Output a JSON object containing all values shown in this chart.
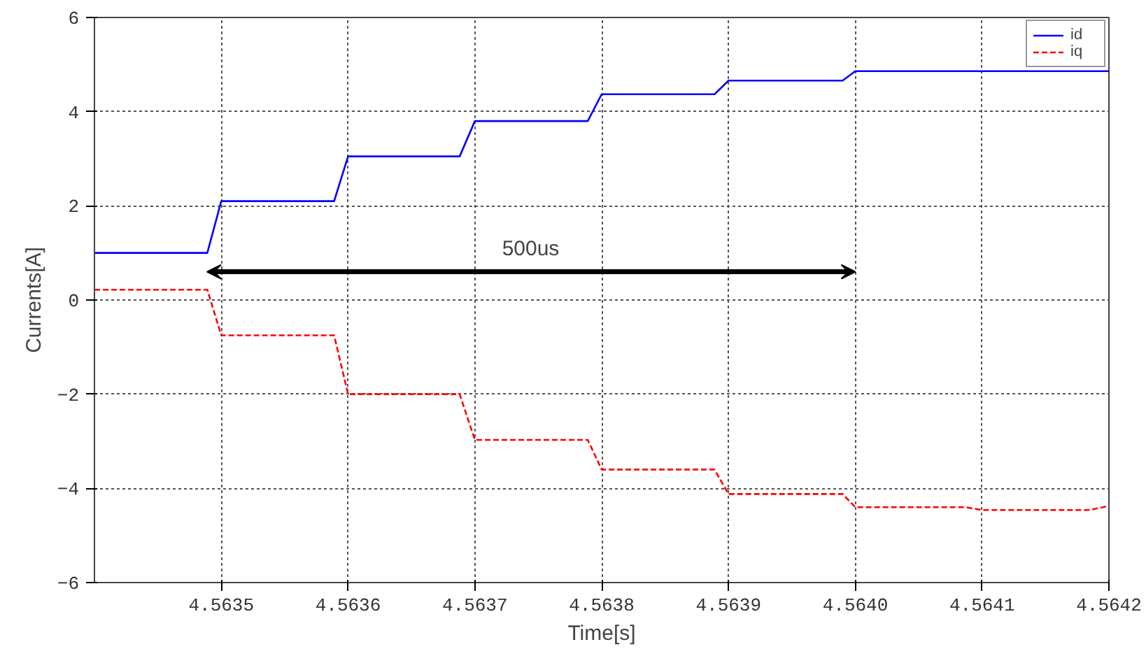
{
  "chart_data": {
    "type": "line",
    "xlabel": "Time[s]",
    "ylabel": "Currents[A]",
    "xlim": [
      4.5634,
      4.5642
    ],
    "ylim": [
      -6,
      6
    ],
    "xticks": [
      4.5635,
      4.5636,
      4.5637,
      4.5638,
      4.5639,
      {
        "value": 4.564,
        "label": "4.5640"
      },
      4.5641,
      4.5642
    ],
    "yticks": [
      -6,
      -4,
      -2,
      0,
      2,
      4,
      6
    ],
    "grid": true,
    "legend": "top right",
    "marker": "none",
    "annotations": [
      "500us"
    ],
    "series": [
      {
        "name": "id",
        "color": "#0000ff",
        "line_style": "solid",
        "x": [
          4.5634,
          4.563489,
          4.5635,
          4.563589,
          4.5636,
          4.563688,
          4.5637,
          4.563789,
          4.5638,
          4.563889,
          4.5639,
          4.56399,
          4.564,
          4.5642
        ],
        "values": [
          1.0,
          1.0,
          2.1,
          2.1,
          3.05,
          3.05,
          3.8,
          3.8,
          4.37,
          4.37,
          4.66,
          4.66,
          4.86,
          4.86
        ]
      },
      {
        "name": "iq",
        "color": "#ff0000",
        "line_style": "dashed",
        "x": [
          4.5634,
          4.563489,
          4.5635,
          4.563589,
          4.5636,
          4.563688,
          4.5637,
          4.563789,
          4.5638,
          4.563889,
          4.5639,
          4.56399,
          4.564,
          4.564087,
          4.5641,
          4.564185,
          4.5642
        ],
        "values": [
          0.22,
          0.22,
          -0.75,
          -0.75,
          -2.0,
          -2.0,
          -2.97,
          -2.97,
          -3.6,
          -3.6,
          -4.12,
          -4.12,
          -4.4,
          -4.4,
          -4.46,
          -4.46,
          -4.37
        ]
      }
    ]
  }
}
